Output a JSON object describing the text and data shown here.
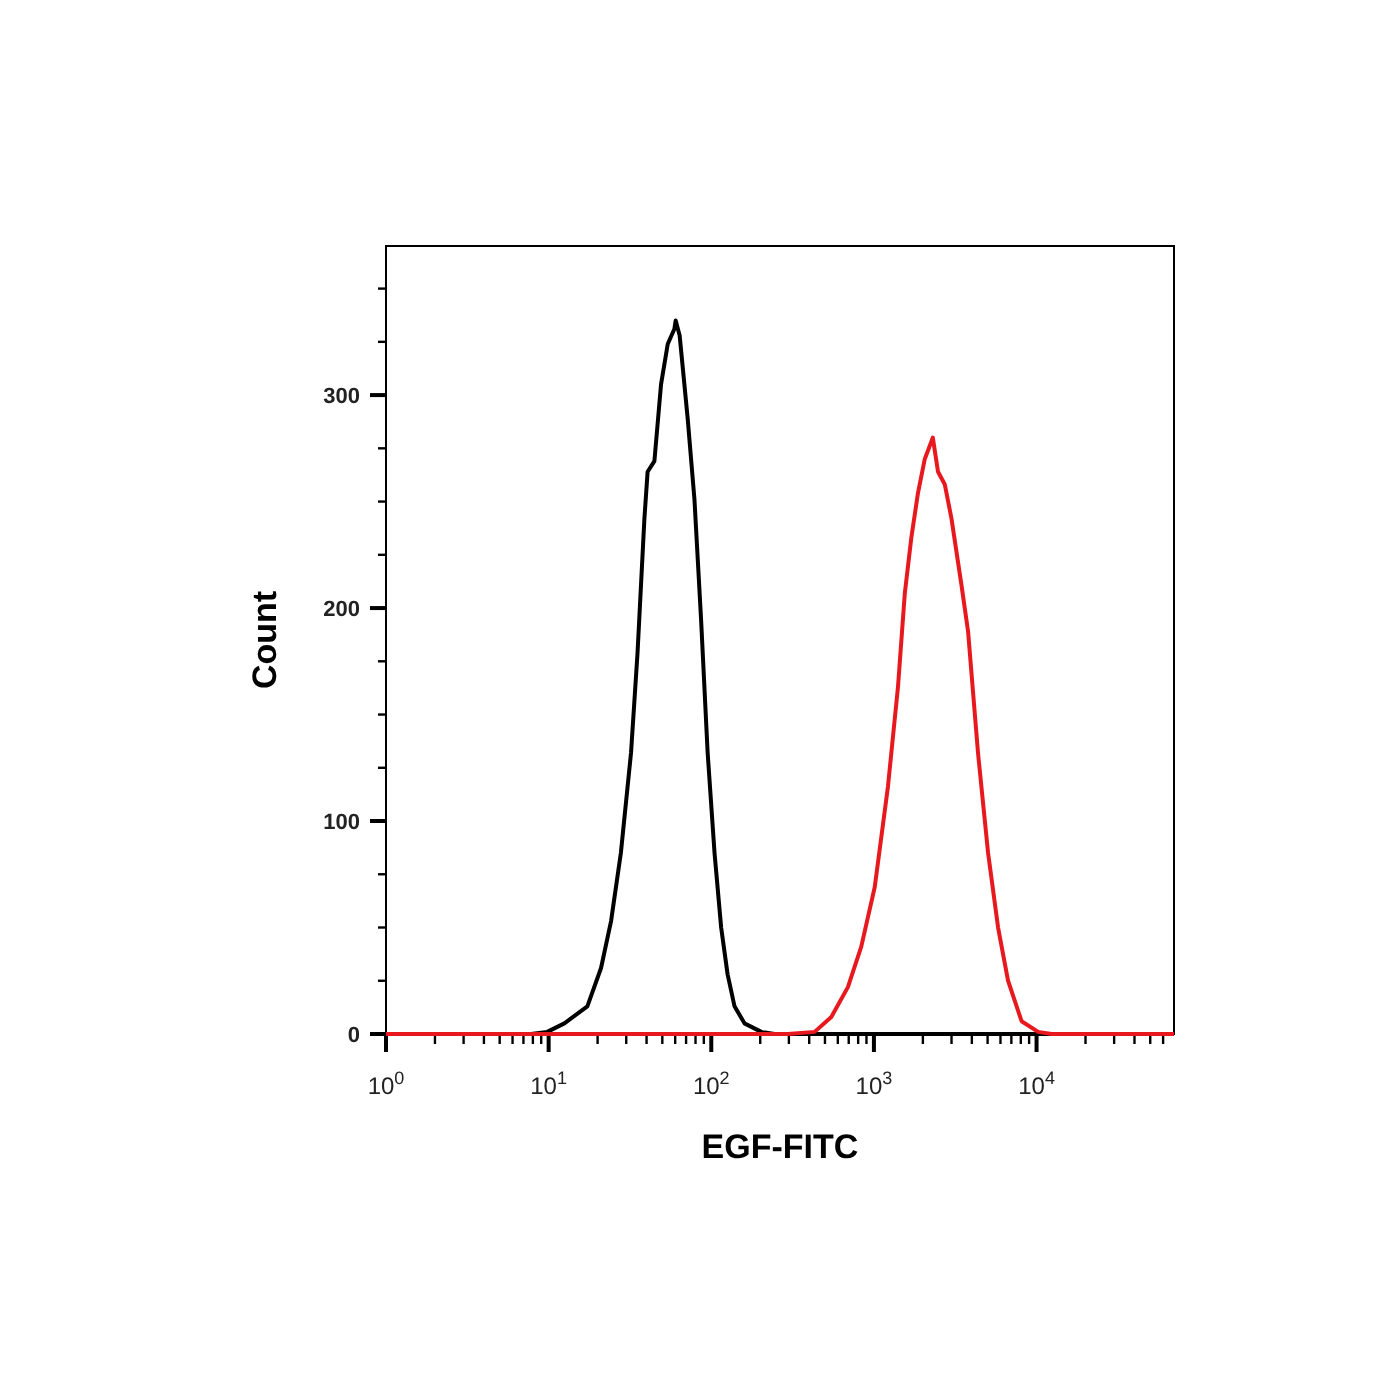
{
  "chart_data": {
    "type": "line",
    "xlabel": "EGF-FITC",
    "ylabel": "Count",
    "log": "x",
    "grid": false,
    "marker": "none",
    "line_style": "solid",
    "xlim": [
      1,
      70000
    ],
    "xticks": [
      {
        "value": 1,
        "label": "10$^{0}$"
      },
      {
        "value": 2,
        "label": null
      },
      {
        "value": 3,
        "label": null
      },
      {
        "value": 4,
        "label": null
      },
      {
        "value": 5,
        "label": null
      },
      {
        "value": 6,
        "label": null
      },
      {
        "value": 7,
        "label": null
      },
      {
        "value": 8,
        "label": null
      },
      {
        "value": 9,
        "label": null
      },
      {
        "value": 10,
        "label": "10$^{1}$"
      },
      {
        "value": 20,
        "label": null
      },
      {
        "value": 30,
        "label": null
      },
      {
        "value": 40,
        "label": null
      },
      {
        "value": 50,
        "label": null
      },
      {
        "value": 60,
        "label": null
      },
      {
        "value": 70,
        "label": null
      },
      {
        "value": 80,
        "label": null
      },
      {
        "value": 90,
        "label": null
      },
      {
        "value": 100,
        "label": "10$^{2}$"
      },
      {
        "value": 200,
        "label": null
      },
      {
        "value": 300,
        "label": null
      },
      {
        "value": 400,
        "label": null
      },
      {
        "value": 500,
        "label": null
      },
      {
        "value": 600,
        "label": null
      },
      {
        "value": 700,
        "label": null
      },
      {
        "value": 800,
        "label": null
      },
      {
        "value": 900,
        "label": null
      },
      {
        "value": 1000,
        "label": "10$^{3}$"
      },
      {
        "value": 2000,
        "label": null
      },
      {
        "value": 3000,
        "label": null
      },
      {
        "value": 4000,
        "label": null
      },
      {
        "value": 5000,
        "label": null
      },
      {
        "value": 6000,
        "label": null
      },
      {
        "value": 7000,
        "label": null
      },
      {
        "value": 8000,
        "label": null
      },
      {
        "value": 9000,
        "label": null
      },
      {
        "value": 10000,
        "label": "10$^{4}$"
      },
      {
        "value": 20000,
        "label": null
      },
      {
        "value": 30000,
        "label": null
      },
      {
        "value": 40000,
        "label": null
      },
      {
        "value": 50000,
        "label": null
      },
      {
        "value": 60000,
        "label": null
      }
    ],
    "ylim": [
      0,
      370
    ],
    "yticks": [
      0,
      {
        "value": 25,
        "label": null
      },
      {
        "value": 50,
        "label": null
      },
      {
        "value": 75,
        "label": null
      },
      100,
      {
        "value": 125,
        "label": null
      },
      {
        "value": 150,
        "label": null
      },
      {
        "value": 175,
        "label": null
      },
      200,
      {
        "value": 225,
        "label": null
      },
      {
        "value": 250,
        "label": null
      },
      {
        "value": 275,
        "label": null
      },
      300,
      {
        "value": 325,
        "label": null
      },
      {
        "value": 350,
        "label": null
      }
    ],
    "series": [
      {
        "color": "#000000",
        "x": [
          1,
          7.8,
          9.8,
          12.5,
          17.3,
          21,
          24.2,
          27.8,
          32.1,
          35.2,
          38.8,
          40.6,
          44.7,
          49.1,
          54,
          59.3,
          60.4,
          63.9,
          71.6,
          78.8,
          86.5,
          95,
          104.7,
          115,
          126,
          139,
          160,
          203,
          245
        ],
        "values": [
          0,
          0,
          1,
          5,
          13,
          31,
          53,
          85,
          132,
          179,
          242,
          264,
          269,
          305,
          324,
          331,
          335,
          328,
          289,
          251,
          195,
          132,
          85,
          50,
          28,
          13,
          5,
          1,
          0
        ]
      },
      {
        "color": "#e8191e",
        "x": [
          1,
          295,
          432,
          547,
          692,
          836,
          1012,
          1219,
          1406,
          1549,
          1698,
          1866,
          2055,
          2302,
          2478,
          2729,
          2999,
          3451,
          3793,
          4365,
          5035,
          5800,
          6683,
          8090,
          10230,
          12360,
          70000
        ],
        "values": [
          0,
          0,
          1,
          8,
          22,
          41,
          69,
          116,
          163,
          207,
          233,
          254,
          270,
          280,
          264,
          258,
          242,
          211,
          189,
          132,
          85,
          50,
          25,
          6,
          1,
          0,
          0
        ]
      }
    ]
  }
}
